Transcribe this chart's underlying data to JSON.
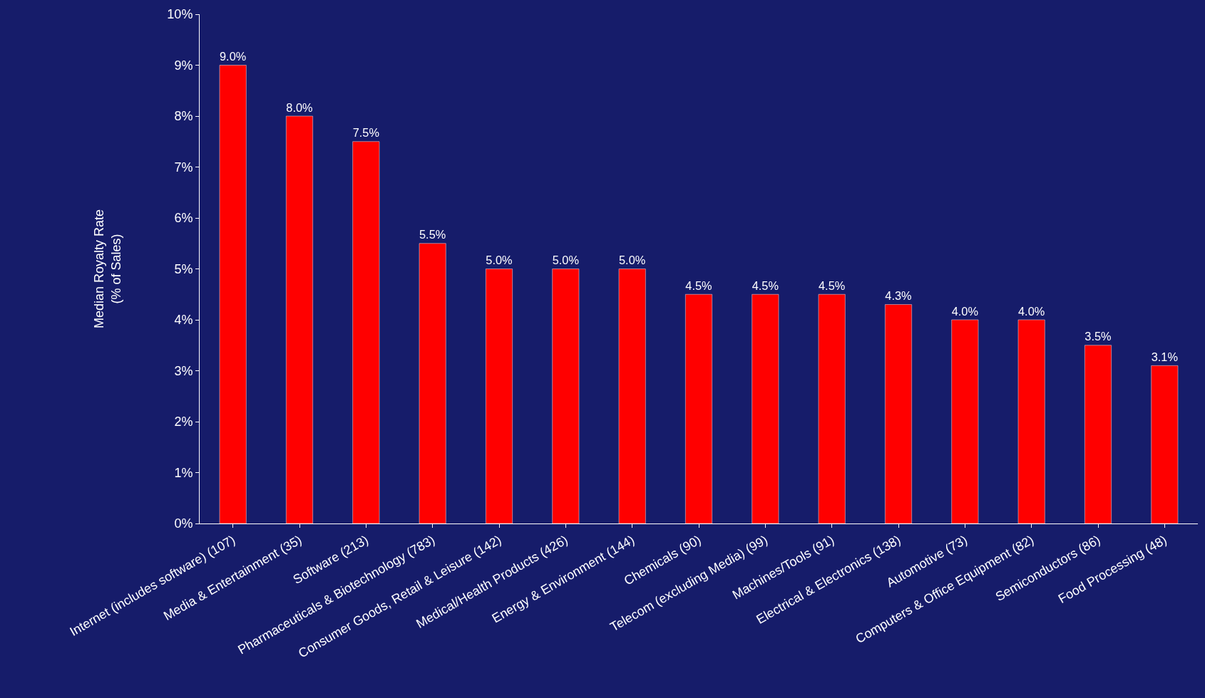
{
  "chart_data": {
    "type": "bar",
    "ylabel": "Median Royalty Rate\n(% of Sales)",
    "categories": [
      "Internet (includes software) (107)",
      "Media & Entertainment (35)",
      "Software (213)",
      "Pharmaceuticals & Biotechnology (783)",
      "Consumer Goods, Retail & Leisure (142)",
      "Medical/Health Products (426)",
      "Energy & Environment (144)",
      "Chemicals (90)",
      "Telecom (excluding Media) (99)",
      "Machines/Tools (91)",
      "Electrical & Electronics (138)",
      "Automotive (73)",
      "Computers & Office Equipment (82)",
      "Semiconductors (86)",
      "Food Processing (48)"
    ],
    "values": [
      9.0,
      8.0,
      7.5,
      5.5,
      5.0,
      5.0,
      5.0,
      4.5,
      4.5,
      4.5,
      4.3,
      4.0,
      4.0,
      3.5,
      3.1
    ],
    "value_labels": [
      "9.0%",
      "8.0%",
      "7.5%",
      "5.5%",
      "5.0%",
      "5.0%",
      "5.0%",
      "4.5%",
      "4.5%",
      "4.5%",
      "4.3%",
      "4.0%",
      "4.0%",
      "3.5%",
      "3.1%"
    ],
    "color": "#ff0000",
    "ylim": [
      0,
      10
    ],
    "yticks": [
      {
        "value": 0,
        "label": "0%"
      },
      {
        "value": 1,
        "label": "1%"
      },
      {
        "value": 2,
        "label": "2%"
      },
      {
        "value": 3,
        "label": "3%"
      },
      {
        "value": 4,
        "label": "4%"
      },
      {
        "value": 5,
        "label": "5%"
      },
      {
        "value": 6,
        "label": "6%"
      },
      {
        "value": 7,
        "label": "7%"
      },
      {
        "value": 8,
        "label": "8%"
      },
      {
        "value": 9,
        "label": "9%"
      },
      {
        "value": 10,
        "label": "10%"
      }
    ],
    "grid": false,
    "legend": false
  }
}
